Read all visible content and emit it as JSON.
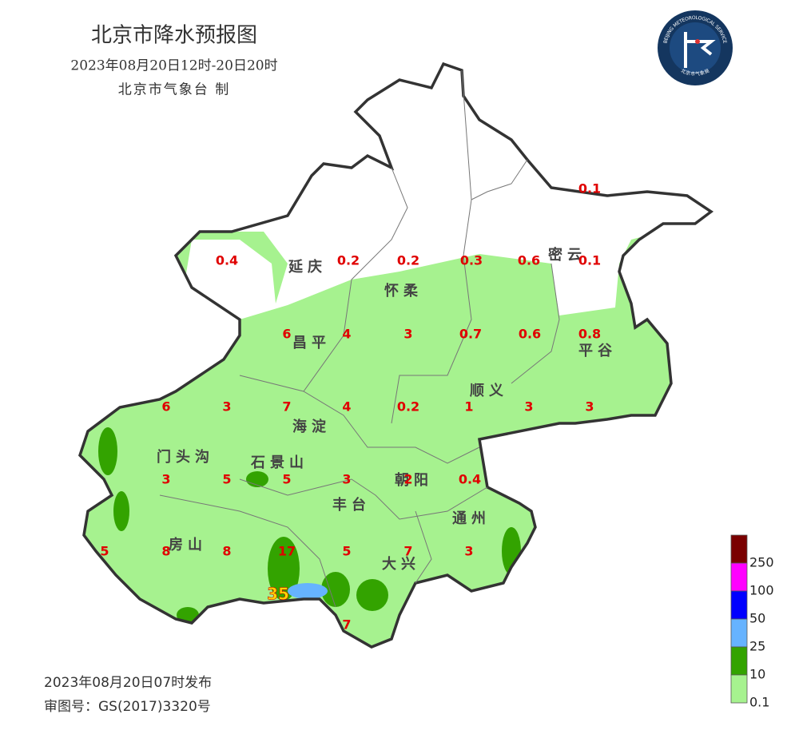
{
  "header": {
    "title": "北京市降水预报图",
    "period": "2023年08月20日12时-20日20时",
    "producer": "北京市气象台 制"
  },
  "logo": {
    "text_en": "BEIJING METEOROLOGICAL SERVICE",
    "text_cn": "北京市气象局"
  },
  "districts": [
    "延庆",
    "怀柔",
    "密云",
    "昌平",
    "平谷",
    "顺义",
    "海淀",
    "门头沟",
    "石景山",
    "朝阳",
    "丰台",
    "通州",
    "房山",
    "大兴"
  ],
  "station_values": [
    "0.1",
    "0.4",
    "0.2",
    "0.2",
    "0.3",
    "0.6",
    "0.1",
    "6",
    "4",
    "3",
    "0.7",
    "0.6",
    "0.8",
    "6",
    "3",
    "7",
    "4",
    "0.2",
    "1",
    "3",
    "3",
    "3",
    "5",
    "5",
    "3",
    "2",
    "0.4",
    "5",
    "8",
    "8",
    "17",
    "5",
    "7",
    "3",
    "35",
    "7"
  ],
  "legend": {
    "levels": [
      {
        "label": "250",
        "color": "#7a0000"
      },
      {
        "label": "100",
        "color": "#ff00ff"
      },
      {
        "label": "50",
        "color": "#0000ff"
      },
      {
        "label": "25",
        "color": "#66b3ff"
      },
      {
        "label": "10",
        "color": "#33a300"
      },
      {
        "label": "0.1",
        "color": "#a6f28f"
      }
    ]
  },
  "footer": {
    "issued": "2023年08月20日07时发布",
    "approval": "审图号：GS(2017)3320号"
  }
}
